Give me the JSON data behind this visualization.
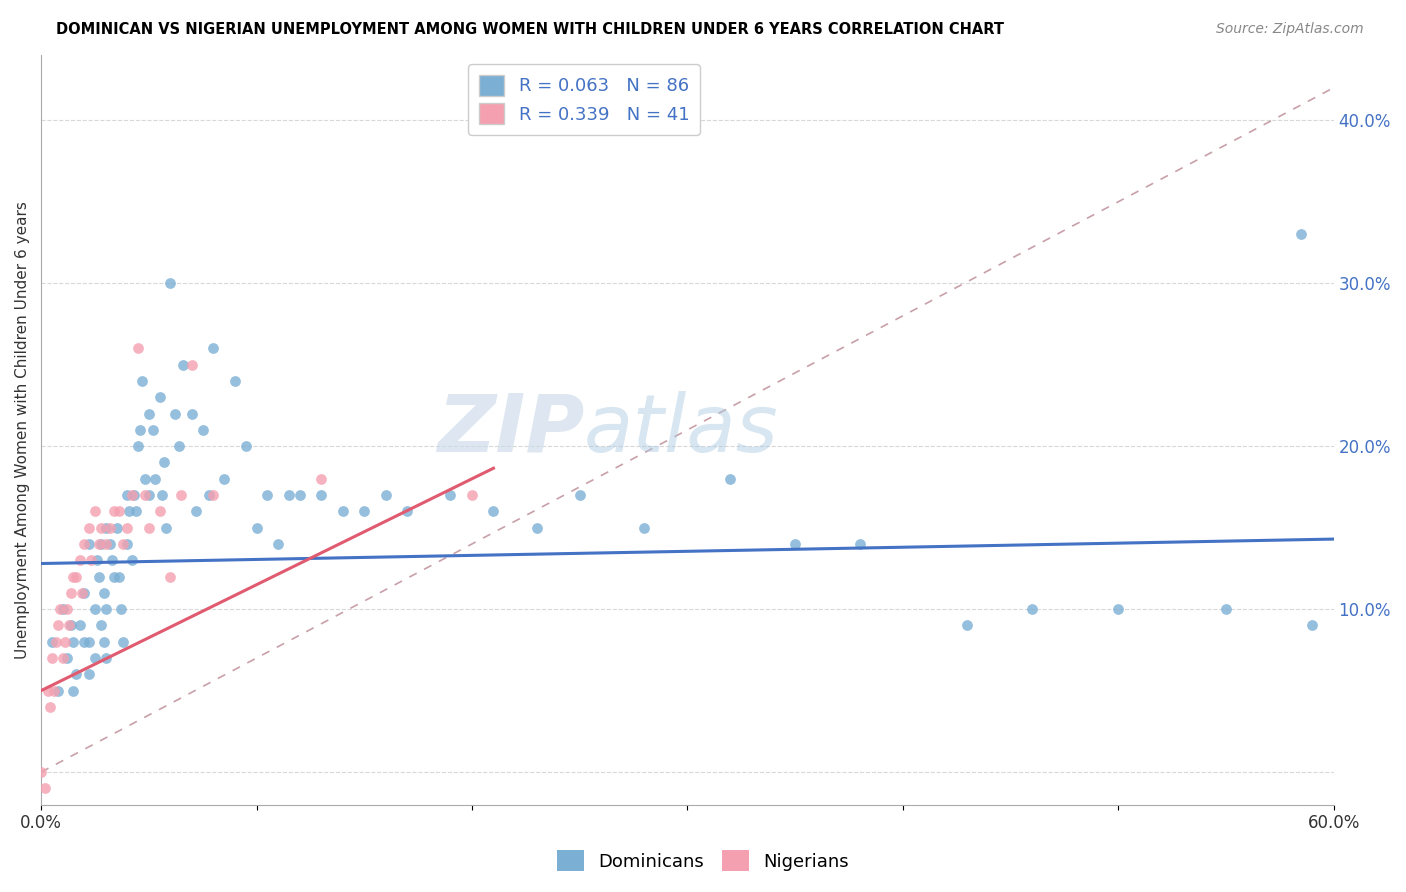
{
  "title": "DOMINICAN VS NIGERIAN UNEMPLOYMENT AMONG WOMEN WITH CHILDREN UNDER 6 YEARS CORRELATION CHART",
  "source": "Source: ZipAtlas.com",
  "ylabel": "Unemployment Among Women with Children Under 6 years",
  "xlabel": "",
  "xlim": [
    0.0,
    0.6
  ],
  "ylim": [
    -0.02,
    0.44
  ],
  "x_ticks": [
    0.0,
    0.1,
    0.2,
    0.3,
    0.4,
    0.5,
    0.6
  ],
  "x_tick_labels": [
    "0.0%",
    "",
    "",
    "",
    "",
    "",
    "60.0%"
  ],
  "y_ticks_right": [
    0.0,
    0.1,
    0.2,
    0.3,
    0.4
  ],
  "y_tick_labels_right": [
    "",
    "10.0%",
    "20.0%",
    "30.0%",
    "40.0%"
  ],
  "dominican_color": "#7bafd4",
  "nigerian_color": "#f4a0b0",
  "dominican_R": 0.063,
  "dominican_N": 86,
  "nigerian_R": 0.339,
  "nigerian_N": 41,
  "blue_line_color": "#4472c4",
  "pink_line_color": "#e05a70",
  "ref_line_color": "#c8a0a8",
  "grid_color": "#d8d8d8",
  "watermark_zip": "ZIP",
  "watermark_atlas": "atlas",
  "dominican_x": [
    0.005,
    0.008,
    0.01,
    0.012,
    0.014,
    0.015,
    0.015,
    0.016,
    0.018,
    0.02,
    0.02,
    0.022,
    0.022,
    0.022,
    0.025,
    0.025,
    0.026,
    0.027,
    0.028,
    0.028,
    0.029,
    0.029,
    0.03,
    0.03,
    0.03,
    0.032,
    0.033,
    0.034,
    0.035,
    0.036,
    0.037,
    0.038,
    0.04,
    0.04,
    0.041,
    0.042,
    0.043,
    0.044,
    0.045,
    0.046,
    0.047,
    0.048,
    0.05,
    0.05,
    0.052,
    0.053,
    0.055,
    0.056,
    0.057,
    0.058,
    0.06,
    0.062,
    0.064,
    0.066,
    0.07,
    0.072,
    0.075,
    0.078,
    0.08,
    0.085,
    0.09,
    0.095,
    0.1,
    0.105,
    0.11,
    0.115,
    0.12,
    0.13,
    0.14,
    0.15,
    0.16,
    0.17,
    0.19,
    0.21,
    0.23,
    0.25,
    0.28,
    0.32,
    0.35,
    0.38,
    0.43,
    0.46,
    0.5,
    0.55,
    0.585,
    0.59
  ],
  "dominican_y": [
    0.08,
    0.05,
    0.1,
    0.07,
    0.09,
    0.05,
    0.08,
    0.06,
    0.09,
    0.11,
    0.08,
    0.14,
    0.08,
    0.06,
    0.1,
    0.07,
    0.13,
    0.12,
    0.14,
    0.09,
    0.11,
    0.08,
    0.15,
    0.1,
    0.07,
    0.14,
    0.13,
    0.12,
    0.15,
    0.12,
    0.1,
    0.08,
    0.17,
    0.14,
    0.16,
    0.13,
    0.17,
    0.16,
    0.2,
    0.21,
    0.24,
    0.18,
    0.22,
    0.17,
    0.21,
    0.18,
    0.23,
    0.17,
    0.19,
    0.15,
    0.3,
    0.22,
    0.2,
    0.25,
    0.22,
    0.16,
    0.21,
    0.17,
    0.26,
    0.18,
    0.24,
    0.2,
    0.15,
    0.17,
    0.14,
    0.17,
    0.17,
    0.17,
    0.16,
    0.16,
    0.17,
    0.16,
    0.17,
    0.16,
    0.15,
    0.17,
    0.15,
    0.18,
    0.14,
    0.14,
    0.09,
    0.1,
    0.1,
    0.1,
    0.33,
    0.09
  ],
  "nigerian_x": [
    0.0,
    0.002,
    0.003,
    0.004,
    0.005,
    0.006,
    0.007,
    0.008,
    0.009,
    0.01,
    0.011,
    0.012,
    0.013,
    0.014,
    0.015,
    0.016,
    0.018,
    0.019,
    0.02,
    0.022,
    0.023,
    0.025,
    0.027,
    0.028,
    0.03,
    0.032,
    0.034,
    0.036,
    0.038,
    0.04,
    0.042,
    0.045,
    0.048,
    0.05,
    0.055,
    0.06,
    0.065,
    0.07,
    0.08,
    0.13,
    0.2
  ],
  "nigerian_y": [
    0.0,
    -0.01,
    0.05,
    0.04,
    0.07,
    0.05,
    0.08,
    0.09,
    0.1,
    0.07,
    0.08,
    0.1,
    0.09,
    0.11,
    0.12,
    0.12,
    0.13,
    0.11,
    0.14,
    0.15,
    0.13,
    0.16,
    0.14,
    0.15,
    0.14,
    0.15,
    0.16,
    0.16,
    0.14,
    0.15,
    0.17,
    0.26,
    0.17,
    0.15,
    0.16,
    0.12,
    0.17,
    0.25,
    0.17,
    0.18,
    0.17
  ]
}
